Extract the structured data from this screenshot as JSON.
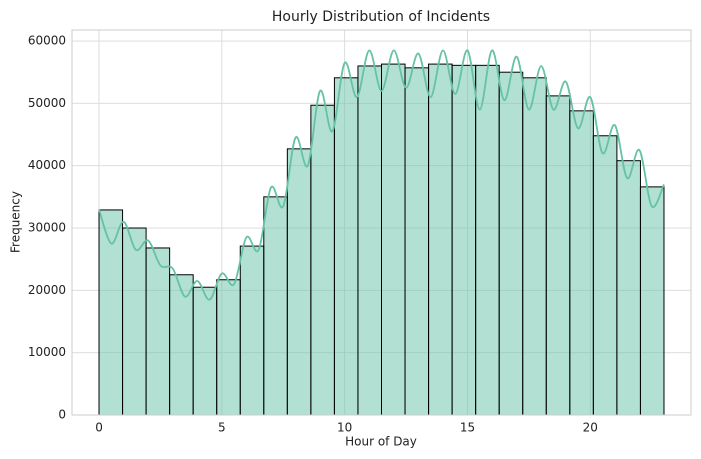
{
  "chart_data": {
    "type": "histogram",
    "title": "Hourly Distribution of Incidents",
    "xlabel": "Hour of Day",
    "ylabel": "Frequency",
    "bins": [
      0,
      0.9583,
      1.9167,
      2.875,
      3.8333,
      4.7917,
      5.75,
      6.7083,
      7.6667,
      8.625,
      9.5833,
      10.5417,
      11.5,
      12.4583,
      13.4167,
      14.375,
      15.3333,
      16.2917,
      17.25,
      18.2083,
      19.1667,
      20.125,
      21.0833,
      22.0417,
      23
    ],
    "values": [
      32900,
      30000,
      26800,
      22500,
      20500,
      21700,
      27100,
      35000,
      42700,
      49700,
      54100,
      56000,
      56300,
      55700,
      56300,
      56100,
      56100,
      55000,
      54100,
      51200,
      48800,
      44800,
      40800,
      36600
    ],
    "color": "#66c2a5",
    "edgecolor": "#000000",
    "kde": {
      "color": "#66c2a5",
      "x": [
        0,
        0.5,
        1,
        1.5,
        2,
        2.5,
        3,
        3.5,
        4,
        4.5,
        5,
        5.5,
        6,
        6.5,
        7,
        7.5,
        8,
        8.5,
        9,
        9.5,
        10,
        10.5,
        11,
        11.5,
        12,
        12.5,
        13,
        13.5,
        14,
        14.5,
        15,
        15.5,
        16,
        16.5,
        17,
        17.5,
        18,
        18.5,
        19,
        19.5,
        20,
        20.5,
        21,
        21.5,
        22,
        22.5,
        23
      ],
      "values": [
        33000,
        27500,
        31000,
        26500,
        28000,
        24000,
        23500,
        19000,
        21500,
        18500,
        22700,
        21000,
        28500,
        26500,
        36500,
        33500,
        44500,
        40000,
        52000,
        45500,
        56500,
        51000,
        58500,
        52000,
        58500,
        52500,
        58000,
        51000,
        58500,
        51500,
        58500,
        49000,
        58500,
        50500,
        57500,
        49000,
        56000,
        49000,
        53500,
        46000,
        51000,
        42000,
        46500,
        38000,
        42500,
        33500,
        37000
      ]
    },
    "xlim": [
      -1.1,
      24.1
    ],
    "ylim": [
      0,
      61770
    ],
    "xticks": [
      0,
      5,
      10,
      15,
      20
    ],
    "yticks": [
      0,
      10000,
      20000,
      30000,
      40000,
      50000,
      60000
    ],
    "grid": true
  }
}
